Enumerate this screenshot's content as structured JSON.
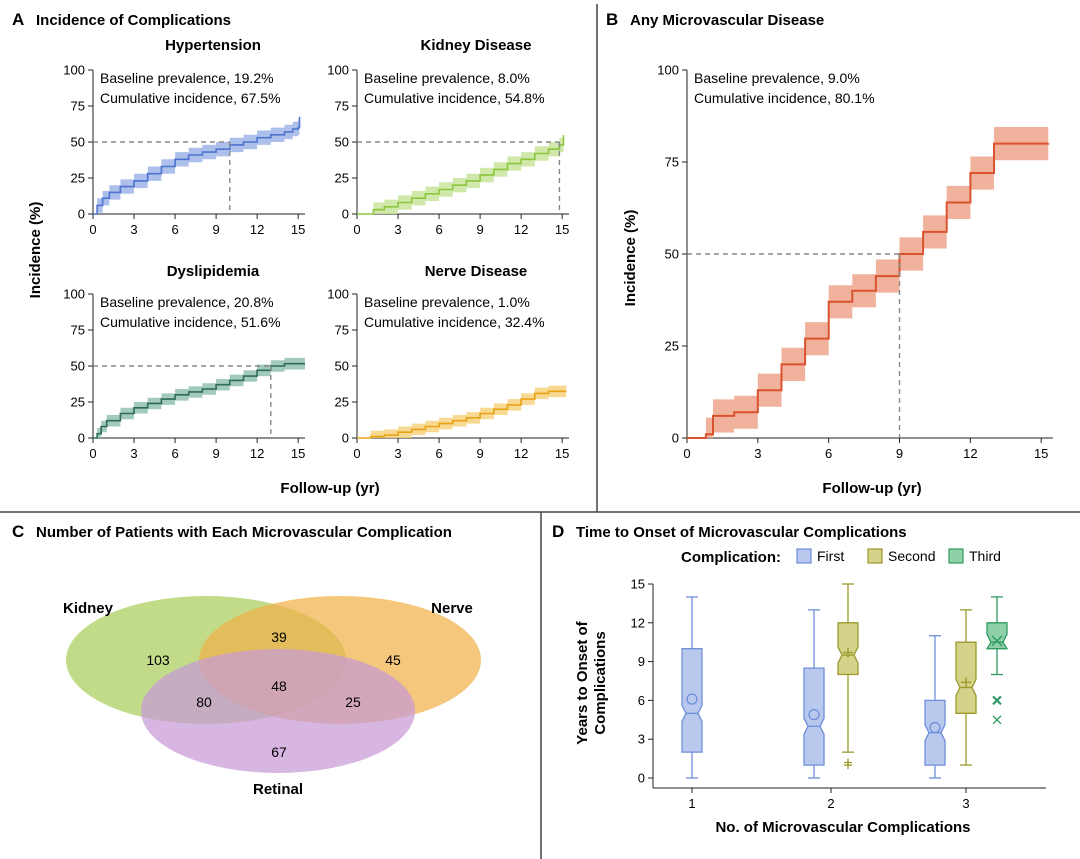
{
  "panels": {
    "A": {
      "letter": "A",
      "title": "Incidence of Complications"
    },
    "B": {
      "letter": "B",
      "title": "Any Microvascular Disease"
    },
    "C": {
      "letter": "C",
      "title": "Number of Patients with Each Microvascular Complication"
    },
    "D": {
      "letter": "D",
      "title": "Time to Onset of Microvascular Complications"
    }
  },
  "chart_data": [
    {
      "id": "hypertension",
      "type": "line",
      "panel": "A",
      "title": "Hypertension",
      "baseline_label": "Baseline prevalence, 19.2%",
      "cumulative_label": "Cumulative incidence, 67.5%",
      "color": "#4f74cf",
      "band_color": "#9fb4e8",
      "xlabel": "Follow-up (yr)",
      "ylabel": "Incidence (%)",
      "xlim": [
        0,
        15.5
      ],
      "ylim": [
        0,
        100
      ],
      "xticks": [
        "0",
        "3",
        "6",
        "9",
        "12",
        "15"
      ],
      "yticks": [
        "0",
        "25",
        "50",
        "75",
        "100"
      ],
      "x": [
        0,
        0.3,
        0.7,
        1.2,
        2,
        3,
        4,
        5,
        6,
        7,
        8,
        9,
        10,
        11,
        12,
        13,
        14,
        14.6,
        15,
        15.1
      ],
      "y": [
        0,
        6,
        11,
        15,
        19,
        23,
        28,
        33,
        38,
        41,
        43,
        45,
        48,
        50,
        53,
        55,
        57,
        59,
        60,
        67.5
      ],
      "ci_halfwidth": 5,
      "median_x": 10,
      "median_y": 50
    },
    {
      "id": "kidney",
      "type": "line",
      "panel": "A",
      "title": "Kidney Disease",
      "baseline_label": "Baseline prevalence, 8.0%",
      "cumulative_label": "Cumulative incidence, 54.8%",
      "color": "#8cc63f",
      "band_color": "#c8e49a",
      "xlabel": "Follow-up (yr)",
      "ylabel": "Incidence (%)",
      "xlim": [
        0,
        15.5
      ],
      "ylim": [
        0,
        100
      ],
      "xticks": [
        "0",
        "3",
        "6",
        "9",
        "12",
        "15"
      ],
      "yticks": [
        "0",
        "25",
        "50",
        "75",
        "100"
      ],
      "x": [
        0,
        0.8,
        1.2,
        2,
        3,
        4,
        5,
        6,
        7,
        8,
        9,
        10,
        11,
        12,
        13,
        14,
        14.8,
        15.1
      ],
      "y": [
        0,
        0,
        3,
        5,
        8,
        11,
        14,
        17,
        20,
        23,
        27,
        31,
        35,
        38,
        42,
        45,
        48,
        54.8
      ],
      "ci_halfwidth": 5,
      "median_x": 14.8,
      "median_y": 50
    },
    {
      "id": "dyslipidemia",
      "type": "line",
      "panel": "A",
      "title": "Dyslipidemia",
      "baseline_label": "Baseline prevalence, 20.8%",
      "cumulative_label": "Cumulative incidence, 51.6%",
      "color": "#2f6b5a",
      "band_color": "#93c2b0",
      "xlabel": "Follow-up (yr)",
      "ylabel": "Incidence (%)",
      "xlim": [
        0,
        15.5
      ],
      "ylim": [
        0,
        100
      ],
      "xticks": [
        "0",
        "3",
        "6",
        "9",
        "12",
        "15"
      ],
      "yticks": [
        "0",
        "25",
        "50",
        "75",
        "100"
      ],
      "x": [
        0,
        0.3,
        0.6,
        1,
        2,
        3,
        4,
        5,
        6,
        7,
        8,
        9,
        10,
        11,
        12,
        13,
        14,
        15.5
      ],
      "y": [
        0,
        3,
        8,
        12,
        17,
        21,
        24,
        27,
        30,
        32,
        34,
        37,
        40,
        43,
        47,
        50,
        51.6,
        51.6
      ],
      "ci_halfwidth": 4,
      "median_x": 13,
      "median_y": 50
    },
    {
      "id": "nerve",
      "type": "line",
      "panel": "A",
      "title": "Nerve Disease",
      "baseline_label": "Baseline prevalence, 1.0%",
      "cumulative_label": "Cumulative incidence, 32.4%",
      "color": "#e8a317",
      "band_color": "#f6d27e",
      "xlabel": "Follow-up (yr)",
      "ylabel": "Incidence (%)",
      "xlim": [
        0,
        15.5
      ],
      "ylim": [
        0,
        100
      ],
      "xticks": [
        "0",
        "3",
        "6",
        "9",
        "12",
        "15"
      ],
      "yticks": [
        "0",
        "25",
        "50",
        "75",
        "100"
      ],
      "x": [
        0,
        1,
        2,
        3,
        4,
        5,
        6,
        7,
        8,
        9,
        10,
        11,
        12,
        13,
        14,
        15.3
      ],
      "y": [
        0,
        1,
        2,
        4,
        6,
        8,
        10,
        12,
        14,
        17,
        20,
        23,
        27,
        31,
        32.4,
        32.4
      ],
      "ci_halfwidth": 4,
      "median_x": null,
      "median_y": 50
    },
    {
      "id": "any_microvascular",
      "type": "line",
      "panel": "B",
      "title": "",
      "baseline_label": "Baseline prevalence, 9.0%",
      "cumulative_label": "Cumulative incidence, 80.1%",
      "color": "#d9532f",
      "band_color": "#eea58c",
      "xlabel": "Follow-up (yr)",
      "ylabel": "Incidence (%)",
      "xlim": [
        0,
        15.5
      ],
      "ylim": [
        0,
        100
      ],
      "xticks": [
        "0",
        "3",
        "6",
        "9",
        "12",
        "15"
      ],
      "yticks": [
        "0",
        "25",
        "50",
        "75",
        "100"
      ],
      "x": [
        0,
        0.8,
        1.1,
        2,
        3,
        4,
        5,
        6,
        7,
        8,
        9,
        10,
        11,
        12,
        13,
        15.3
      ],
      "y": [
        0,
        1,
        6,
        7,
        13,
        20,
        27,
        37,
        40,
        44,
        50,
        56,
        64,
        72,
        80,
        80.1
      ],
      "ci_halfwidth": 4.5,
      "median_x": 9,
      "median_y": 50
    },
    {
      "id": "venn",
      "type": "venn",
      "panel": "C",
      "sets": [
        {
          "name": "Kidney",
          "color": "#a9cd5a"
        },
        {
          "name": "Nerve",
          "color": "#f0b24a"
        },
        {
          "name": "Retinal",
          "color": "#c79ad6"
        }
      ],
      "regions": [
        {
          "sets": [
            "Kidney"
          ],
          "value": "103"
        },
        {
          "sets": [
            "Nerve"
          ],
          "value": "45"
        },
        {
          "sets": [
            "Retinal"
          ],
          "value": "67"
        },
        {
          "sets": [
            "Kidney",
            "Nerve"
          ],
          "value": "39"
        },
        {
          "sets": [
            "Kidney",
            "Retinal"
          ],
          "value": "80"
        },
        {
          "sets": [
            "Nerve",
            "Retinal"
          ],
          "value": "25"
        },
        {
          "sets": [
            "Kidney",
            "Nerve",
            "Retinal"
          ],
          "value": "48"
        }
      ]
    },
    {
      "id": "boxplot",
      "type": "box",
      "panel": "D",
      "legend_title": "Complication:",
      "xlabel": "No. of Microvascular Complications",
      "ylabel_lines": [
        "Years to Onset of",
        "Complications"
      ],
      "ylim": [
        0,
        15
      ],
      "yticks": [
        "0",
        "3",
        "6",
        "9",
        "12",
        "15"
      ],
      "groups": [
        "1",
        "2",
        "3"
      ],
      "series": [
        {
          "name": "First",
          "color": "#6f8fd9",
          "fill": "#b9c9ee",
          "boxes": [
            {
              "group": 0,
              "min": 0,
              "q1": 2,
              "median": 5,
              "q3": 10,
              "max": 14,
              "mean": 6.1,
              "outliers": []
            },
            {
              "group": 1,
              "min": 0,
              "q1": 1,
              "median": 4,
              "q3": 8.5,
              "max": 13,
              "mean": 4.9,
              "outliers": []
            },
            {
              "group": 2,
              "min": 0,
              "q1": 1,
              "median": 3.5,
              "q3": 6,
              "max": 11,
              "mean": 3.9,
              "outliers": []
            }
          ]
        },
        {
          "name": "Second",
          "color": "#9c9a2c",
          "fill": "#d4d28a",
          "boxes": [
            {
              "group": 1,
              "min": 2,
              "q1": 8,
              "median": 9.5,
              "q3": 12,
              "max": 15,
              "mean": 9.7,
              "outliers": [
                1.0,
                1.2
              ]
            },
            {
              "group": 2,
              "min": 1,
              "q1": 5,
              "median": 7,
              "q3": 10.5,
              "max": 13,
              "mean": 7.4,
              "outliers": []
            }
          ]
        },
        {
          "name": "Third",
          "color": "#2e9a62",
          "fill": "#8fd0a9",
          "boxes": [
            {
              "group": 2,
              "min": 8,
              "q1": 10,
              "median": 10.5,
              "q3": 12,
              "max": 14,
              "mean": 10.6,
              "outliers": [
                6.0,
                4.5
              ]
            }
          ]
        }
      ]
    }
  ]
}
